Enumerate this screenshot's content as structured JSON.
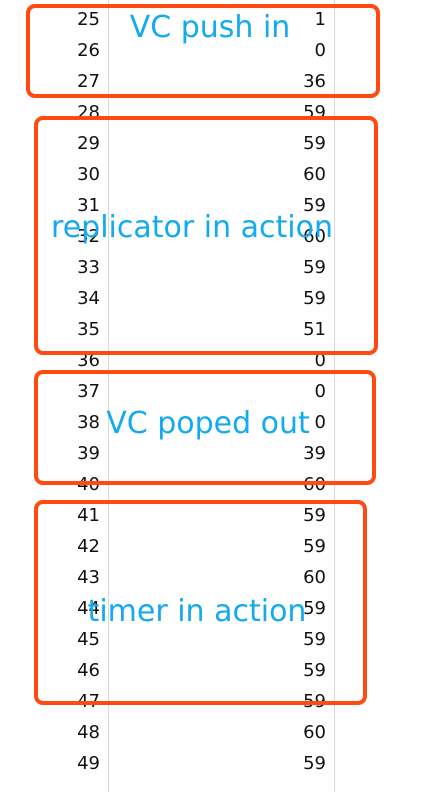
{
  "rows": [
    {
      "a": "25",
      "b": "1"
    },
    {
      "a": "26",
      "b": "0"
    },
    {
      "a": "27",
      "b": "36"
    },
    {
      "a": "28",
      "b": "59"
    },
    {
      "a": "29",
      "b": "59"
    },
    {
      "a": "30",
      "b": "60"
    },
    {
      "a": "31",
      "b": "59"
    },
    {
      "a": "32",
      "b": "60"
    },
    {
      "a": "33",
      "b": "59"
    },
    {
      "a": "34",
      "b": "59"
    },
    {
      "a": "35",
      "b": "51"
    },
    {
      "a": "36",
      "b": "0"
    },
    {
      "a": "37",
      "b": "0"
    },
    {
      "a": "38",
      "b": "0"
    },
    {
      "a": "39",
      "b": "39"
    },
    {
      "a": "40",
      "b": "60"
    },
    {
      "a": "41",
      "b": "59"
    },
    {
      "a": "42",
      "b": "59"
    },
    {
      "a": "43",
      "b": "60"
    },
    {
      "a": "44",
      "b": "59"
    },
    {
      "a": "45",
      "b": "59"
    },
    {
      "a": "46",
      "b": "59"
    },
    {
      "a": "47",
      "b": "59"
    },
    {
      "a": "48",
      "b": "60"
    },
    {
      "a": "49",
      "b": "59"
    }
  ],
  "annotations": [
    {
      "label": "VC push in",
      "color": "#14aaf0",
      "border_color": "#ff4a12"
    },
    {
      "label": "replicator in action",
      "color": "#14aaf0",
      "border_color": "#ff4a12"
    },
    {
      "label": "VC poped out",
      "color": "#14aaf0",
      "border_color": "#ff4a12"
    },
    {
      "label": "timer in action",
      "color": "#14aaf0",
      "border_color": "#ff4a12"
    }
  ]
}
